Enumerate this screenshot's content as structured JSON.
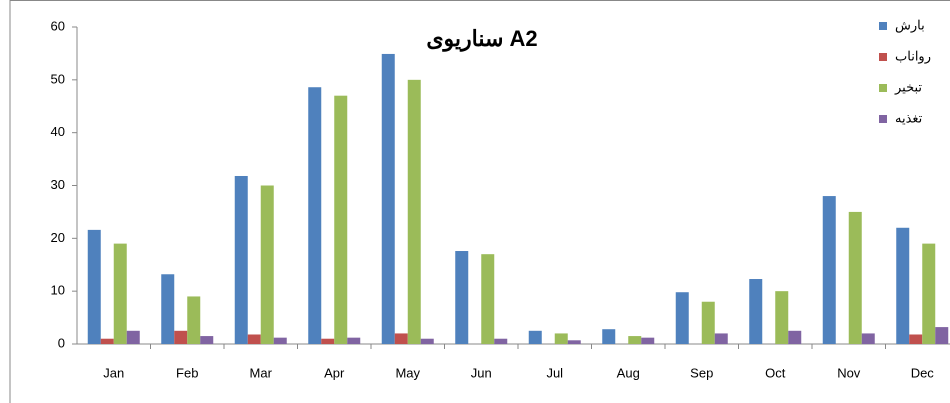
{
  "chart_data": {
    "type": "bar",
    "title": "سناریوی A2",
    "categories": [
      "Jan",
      "Feb",
      "Mar",
      "Apr",
      "May",
      "Jun",
      "Jul",
      "Aug",
      "Sep",
      "Oct",
      "Nov",
      "Dec"
    ],
    "series": [
      {
        "name": "بارش",
        "color": "#4f81bd",
        "values": [
          21.6,
          13.2,
          31.8,
          48.6,
          54.9,
          17.6,
          2.5,
          2.8,
          9.8,
          12.3,
          28,
          22
        ]
      },
      {
        "name": "رواناب",
        "color": "#c0504d",
        "values": [
          1,
          2.5,
          1.8,
          1,
          2,
          0,
          0,
          0,
          0,
          0,
          0,
          1.8
        ]
      },
      {
        "name": "تبخیر",
        "color": "#9bbb59",
        "values": [
          19,
          9,
          30,
          47,
          50,
          17,
          2,
          1.5,
          8,
          10,
          25,
          19
        ]
      },
      {
        "name": "تغذیه",
        "color": "#8064a2",
        "values": [
          2.5,
          1.5,
          1.2,
          1.2,
          1,
          1,
          0.7,
          1.2,
          2,
          2.5,
          2,
          3.2
        ]
      }
    ],
    "ylim": [
      0,
      60
    ],
    "yticks": [
      0,
      10,
      20,
      30,
      40,
      50,
      60
    ],
    "grid": false,
    "legend": "top-right"
  }
}
